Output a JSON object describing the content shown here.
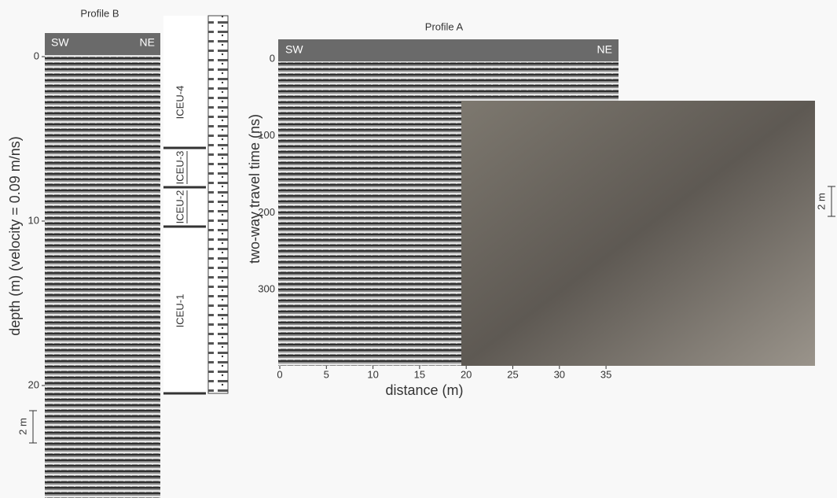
{
  "profile_b": {
    "title": "Profile B",
    "sw": "SW",
    "ne": "NE",
    "depth_ticks": [
      0,
      10,
      20
    ],
    "axis_label": "depth (m) (velocity = 0.09 m/ns)",
    "scale_bar": "2 m"
  },
  "units": [
    "ICEU-4",
    "ICEU-3",
    "ICEU-2",
    "ICEU-1"
  ],
  "profile_a": {
    "title": "Profile A",
    "sw": "SW",
    "ne": "NE",
    "time_ticks": [
      0,
      100,
      200,
      300
    ],
    "time_label": "two-way travel time (ns)",
    "distance_ticks": [
      0,
      5,
      10,
      15,
      20,
      25,
      30,
      35
    ],
    "distance_label": "distance (m)",
    "scale_bar": "2 m"
  }
}
